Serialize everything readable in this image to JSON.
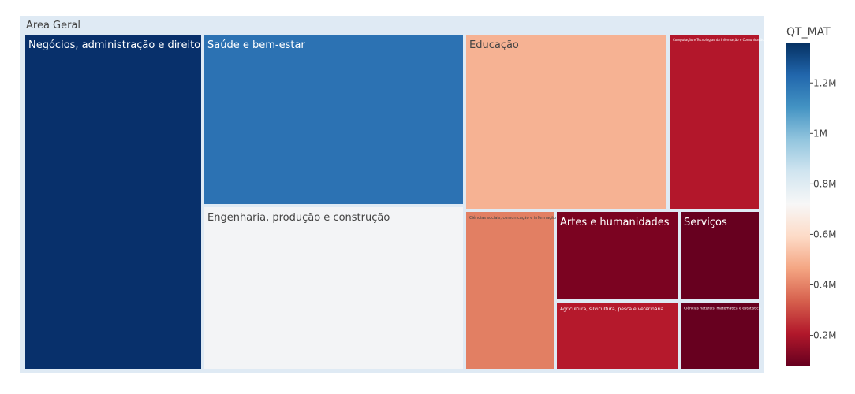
{
  "chart_data": {
    "type": "treemap",
    "root_label": "Area Geral",
    "value_field": "QT_MAT",
    "tiles": [
      {
        "label": "Negócios, administração e direito",
        "value": 1360000,
        "color": "#08306b",
        "text_color": "#ffffff"
      },
      {
        "label": "Saúde e bem-estar",
        "value": 1150000,
        "color": "#2c72b3",
        "text_color": "#ffffff"
      },
      {
        "label": "Engenharia, produção e construção",
        "value": 720000,
        "color": "#f3f4f6",
        "text_color": "#444444"
      },
      {
        "label": "Educação",
        "value": 450000,
        "color": "#f6b293",
        "text_color": "#444444"
      },
      {
        "label": "Computação e Tecnologias da Informação e Comunicação (TIC)",
        "value": 170000,
        "color": "#b3172b",
        "text_color": "#ffffff"
      },
      {
        "label": "Ciências sociais, comunicação e informação",
        "value": 420000,
        "color": "#e27f63",
        "text_color": "#444444"
      },
      {
        "label": "Artes e humanidades",
        "value": 110000,
        "color": "#7b0321",
        "text_color": "#ffffff"
      },
      {
        "label": "Serviços",
        "value": 90000,
        "color": "#67001f",
        "text_color": "#ffffff"
      },
      {
        "label": "Agricultura, silvicultura, pesca e veterinária",
        "value": 170000,
        "color": "#b5192c",
        "text_color": "#ffffff"
      },
      {
        "label": "Ciências naturais, matemática e estatística",
        "value": 90000,
        "color": "#67001f",
        "text_color": "#ffffff"
      }
    ],
    "colorbar": {
      "title": "QT_MAT",
      "range": [
        80000,
        1360000
      ],
      "ticks": [
        {
          "value": 200000,
          "label": "0.2M"
        },
        {
          "value": 400000,
          "label": "0.4M"
        },
        {
          "value": 600000,
          "label": "0.6M"
        },
        {
          "value": 800000,
          "label": "0.8M"
        },
        {
          "value": 1000000,
          "label": "1M"
        },
        {
          "value": 1200000,
          "label": "1.2M"
        }
      ],
      "stops": [
        "#67001f",
        "#b2182b",
        "#d6604d",
        "#f4a582",
        "#fddbc7",
        "#f7f7f7",
        "#d1e5f0",
        "#92c5de",
        "#4393c3",
        "#2166ac",
        "#053061"
      ]
    }
  }
}
